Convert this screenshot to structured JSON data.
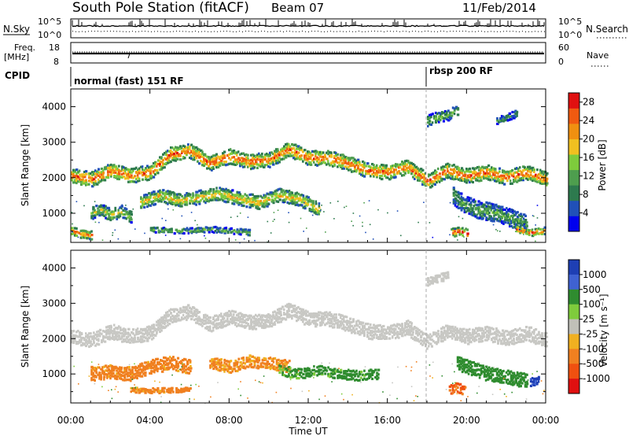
{
  "header": {
    "station": "South Pole Station (fitACF)",
    "beam": "Beam 07",
    "date": "11/Feb/2014"
  },
  "strip": {
    "nsky_label": "N.Sky",
    "nsky_ticks": [
      "10^5",
      "10^0"
    ],
    "nsearch_label": "N.Search",
    "nsearch_ticks": [
      "10^5",
      "10^0"
    ],
    "freq_label": "Freq.",
    "freq_unit": "[MHz]",
    "freq_ticks": [
      "18",
      "8"
    ],
    "nave_label": "Nave",
    "nave_ticks": [
      "60",
      "0"
    ],
    "cpid_label": "CPID",
    "cpid_modes": [
      "normal (fast) 151 RF",
      "rbsp 200 RF"
    ]
  },
  "colors": {
    "power": [
      "#0000ee",
      "#2050b8",
      "#2d7a4e",
      "#4e9e4e",
      "#7ecb3c",
      "#f0c020",
      "#f09010",
      "#f05a10",
      "#e01010"
    ],
    "velocity": [
      "#1e3fb4",
      "#3f62d2",
      "#2f8c2f",
      "#7fcc3c",
      "#c0c0b8",
      "#f0b020",
      "#f08020",
      "#f05010",
      "#e01010"
    ],
    "ground_scatter": "#c8c8c4"
  },
  "chart_data": [
    {
      "type": "heatmap",
      "title": "Power",
      "xlabel": "Time UT",
      "ylabel": "Slant Range [km]",
      "x_ticks": [
        "00:00",
        "04:00",
        "08:00",
        "12:00",
        "16:00",
        "20:00",
        "00:00"
      ],
      "y_ticks": [
        1000,
        2000,
        3000,
        4000
      ],
      "xlim": [
        0,
        24
      ],
      "ylim": [
        180,
        4500
      ],
      "colorbar_label": "Power [dB]",
      "colorbar_ticks": [
        4,
        8,
        12,
        16,
        20,
        24,
        28
      ],
      "clim": [
        0,
        30
      ],
      "bands": [
        {
          "x": [
            0,
            1,
            2,
            3,
            4,
            5,
            6,
            7,
            8,
            9,
            10,
            11,
            12,
            13,
            14,
            15,
            16,
            17,
            18,
            19,
            20,
            21,
            22,
            23,
            24
          ],
          "y": [
            2050,
            1950,
            2200,
            2050,
            2150,
            2650,
            2750,
            2400,
            2600,
            2450,
            2500,
            2800,
            2550,
            2550,
            2400,
            2200,
            2150,
            2300,
            1900,
            2200,
            2050,
            2150,
            2000,
            2150,
            1950
          ],
          "width": 420,
          "core": 26
        },
        {
          "x": [
            3.5,
            4.5,
            5.5,
            6.5,
            7.5,
            8.5,
            9.5,
            10.5,
            11.5,
            12.5
          ],
          "y": [
            1300,
            1500,
            1350,
            1450,
            1550,
            1400,
            1300,
            1500,
            1400,
            1100
          ],
          "width": 380,
          "core": 20
        },
        {
          "x": [
            1,
            1.5,
            2,
            2.5,
            3
          ],
          "y": [
            1000,
            1100,
            950,
            1050,
            900
          ],
          "width": 350,
          "core": 16
        },
        {
          "x": [
            18,
            18.5,
            19,
            19.5
          ],
          "y": [
            3600,
            3700,
            3750,
            3900
          ],
          "width": 300,
          "core": 14
        },
        {
          "x": [
            21.5,
            22,
            22.5
          ],
          "y": [
            3600,
            3700,
            3800
          ],
          "width": 200,
          "core": 10
        },
        {
          "x": [
            19.3,
            19.7,
            20.1,
            20.5,
            21,
            21.5,
            22,
            22.5,
            23
          ],
          "y": [
            1500,
            1300,
            1200,
            1100,
            1050,
            1000,
            900,
            800,
            700
          ],
          "width": 500,
          "core": 12
        },
        {
          "x": [
            19.2,
            19.6,
            20
          ],
          "y": [
            450,
            500,
            420
          ],
          "width": 250,
          "core": 29
        },
        {
          "x": [
            22.5,
            23.2,
            23.9
          ],
          "y": [
            550,
            450,
            500
          ],
          "width": 200,
          "core": 27
        },
        {
          "x": [
            0,
            0.5,
            1
          ],
          "y": [
            500,
            420,
            380
          ],
          "width": 250,
          "core": 25
        },
        {
          "x": [
            4,
            5,
            6,
            7,
            8,
            9
          ],
          "y": [
            550,
            500,
            500,
            550,
            500,
            450
          ],
          "width": 150,
          "core": 14
        }
      ]
    },
    {
      "type": "heatmap",
      "title": "Velocity",
      "xlabel": "Time UT",
      "ylabel": "Slant Range [km]",
      "x_ticks": [
        "00:00",
        "04:00",
        "08:00",
        "12:00",
        "16:00",
        "20:00",
        "00:00"
      ],
      "y_ticks": [
        1000,
        2000,
        3000,
        4000
      ],
      "xlim": [
        0,
        24
      ],
      "ylim": [
        180,
        4500
      ],
      "colorbar_label": "Velocity [m s⁻¹]",
      "colorbar_ticks": [
        "1000",
        "500",
        "100",
        "25",
        "-25",
        "-100",
        "-500",
        "-1000"
      ],
      "bands": [
        {
          "x": [
            0,
            1,
            2,
            3,
            4,
            5,
            6,
            7,
            8,
            9,
            10,
            11,
            12,
            13,
            14,
            15,
            16,
            17,
            18,
            19,
            20,
            21,
            22,
            23,
            24
          ],
          "y": [
            2050,
            1950,
            2200,
            2050,
            2150,
            2650,
            2750,
            2400,
            2600,
            2450,
            2500,
            2800,
            2550,
            2550,
            2400,
            2200,
            2150,
            2300,
            1900,
            2200,
            2050,
            2150,
            2000,
            2150,
            1950
          ],
          "width": 420,
          "vel": 0
        },
        {
          "x": [
            1,
            2,
            3,
            4,
            5,
            6
          ],
          "y": [
            1000,
            1050,
            1000,
            1200,
            1300,
            1200
          ],
          "width": 400,
          "vel": -150
        },
        {
          "x": [
            7,
            8,
            9,
            10,
            11
          ],
          "y": [
            1300,
            1200,
            1350,
            1300,
            1200
          ],
          "width": 350,
          "vel": -120
        },
        {
          "x": [
            10.5,
            11.5,
            12.5,
            13.5,
            14.5,
            15.5
          ],
          "y": [
            1100,
            1000,
            1100,
            1000,
            950,
            1000
          ],
          "width": 300,
          "vel": 150
        },
        {
          "x": [
            19.5,
            20,
            20.5,
            21,
            21.5,
            22,
            22.5,
            23
          ],
          "y": [
            1300,
            1200,
            1100,
            1000,
            950,
            900,
            850,
            800
          ],
          "width": 400,
          "vel": 200
        },
        {
          "x": [
            19.1,
            19.5,
            19.9
          ],
          "y": [
            550,
            600,
            520
          ],
          "width": 300,
          "vel": -300
        },
        {
          "x": [
            3,
            4,
            5,
            6
          ],
          "y": [
            550,
            520,
            540,
            560
          ],
          "width": 120,
          "vel": -150
        },
        {
          "x": [
            18,
            18.5,
            19
          ],
          "y": [
            3600,
            3700,
            3800
          ],
          "width": 250,
          "vel": 0
        },
        {
          "x": [
            23.2,
            23.6
          ],
          "y": [
            750,
            800
          ],
          "width": 250,
          "vel": 900
        }
      ]
    }
  ]
}
